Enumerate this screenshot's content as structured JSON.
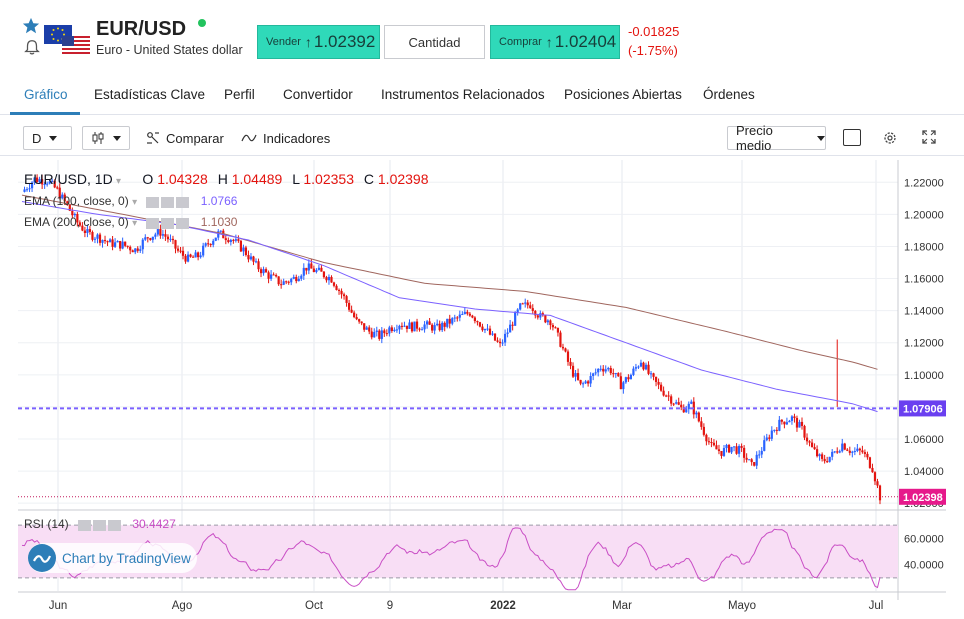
{
  "header": {
    "pair": "EUR/USD",
    "description": "Euro - United States dollar",
    "sell_label": "Vender",
    "sell_price": "1.02392",
    "quantity_label": "Cantidad",
    "buy_label": "Comprar",
    "buy_price": "1.02404",
    "change_abs": "-0.01825",
    "change_pct": "(-1.75%)"
  },
  "tabs": [
    {
      "label": "Gráfico",
      "active": true
    },
    {
      "label": "Estadísticas Clave"
    },
    {
      "label": "Perfil"
    },
    {
      "label": "Convertidor"
    },
    {
      "label": "Instrumentos Relacionados"
    },
    {
      "label": "Posiciones Abiertas"
    },
    {
      "label": "Órdenes"
    }
  ],
  "toolbar": {
    "interval": "D",
    "compare": "Comparar",
    "indicators": "Indicadores",
    "price_mode": "Precio medio"
  },
  "legend": {
    "symbol": "EUR/USD, 1D",
    "o_key": "O",
    "o_val": "1.04328",
    "h_key": "H",
    "h_val": "1.04489",
    "l_key": "L",
    "l_val": "1.02353",
    "c_key": "C",
    "c_val": "1.02398",
    "ema100_label": "EMA (100, close, 0)",
    "ema100_val": "1.0766",
    "ema200_label": "EMA (200, close, 0)",
    "ema200_val": "1.1030",
    "rsi_label": "RSI (14)",
    "rsi_val": "30.4427"
  },
  "branding": "Chart by TradingView",
  "colors": {
    "up": "#2962ff",
    "down": "#e3140f",
    "ema100": "#7b61ff",
    "ema200": "#a0665e",
    "rsi": "#c94ec5",
    "rsi_band": "#f8def5",
    "accent": "#2d7eb8",
    "trade_button": "#2fd9b9"
  },
  "chart_data": {
    "type": "candlestick",
    "ylim": [
      1.017,
      1.232
    ],
    "y_ticks": [
      "1.22000",
      "1.20000",
      "1.18000",
      "1.16000",
      "1.14000",
      "1.12000",
      "1.10000",
      "1.08000",
      "1.06000",
      "1.04000",
      "1.02000"
    ],
    "x_ticks": [
      "Jun",
      "Ago",
      "Oct",
      "9",
      "2022",
      "Mar",
      "Mayo",
      "Jul"
    ],
    "price_label_last": "1.02398",
    "price_label_level": "1.07906",
    "level_line": 1.07906,
    "last_price": 1.02398,
    "close_path": [
      [
        0,
        1.214
      ],
      [
        5,
        1.222
      ],
      [
        10,
        1.221
      ],
      [
        14,
        1.215
      ],
      [
        18,
        1.205
      ],
      [
        22,
        1.195
      ],
      [
        26,
        1.188
      ],
      [
        30,
        1.186
      ],
      [
        35,
        1.182
      ],
      [
        40,
        1.181
      ],
      [
        45,
        1.178
      ],
      [
        50,
        1.186
      ],
      [
        55,
        1.189
      ],
      [
        58,
        1.185
      ],
      [
        62,
        1.177
      ],
      [
        66,
        1.172
      ],
      [
        70,
        1.174
      ],
      [
        74,
        1.182
      ],
      [
        78,
        1.188
      ],
      [
        83,
        1.185
      ],
      [
        88,
        1.178
      ],
      [
        93,
        1.168
      ],
      [
        98,
        1.162
      ],
      [
        103,
        1.157
      ],
      [
        108,
        1.16
      ],
      [
        113,
        1.167
      ],
      [
        118,
        1.164
      ],
      [
        123,
        1.16
      ],
      [
        128,
        1.148
      ],
      [
        133,
        1.133
      ],
      [
        138,
        1.127
      ],
      [
        142,
        1.124
      ],
      [
        146,
        1.129
      ],
      [
        150,
        1.132
      ],
      [
        155,
        1.13
      ],
      [
        160,
        1.131
      ],
      [
        165,
        1.129
      ],
      [
        170,
        1.133
      ],
      [
        174,
        1.136
      ],
      [
        178,
        1.139
      ],
      [
        182,
        1.132
      ],
      [
        186,
        1.125
      ],
      [
        190,
        1.118
      ],
      [
        194,
        1.13
      ],
      [
        198,
        1.142
      ],
      [
        202,
        1.144
      ],
      [
        206,
        1.136
      ],
      [
        210,
        1.134
      ],
      [
        214,
        1.12
      ],
      [
        218,
        1.104
      ],
      [
        222,
        1.093
      ],
      [
        226,
        1.098
      ],
      [
        230,
        1.105
      ],
      [
        234,
        1.103
      ],
      [
        238,
        1.094
      ],
      [
        242,
        1.1
      ],
      [
        246,
        1.109
      ],
      [
        250,
        1.098
      ],
      [
        254,
        1.091
      ],
      [
        258,
        1.085
      ],
      [
        262,
        1.079
      ],
      [
        266,
        1.081
      ],
      [
        270,
        1.068
      ],
      [
        274,
        1.055
      ],
      [
        278,
        1.052
      ],
      [
        282,
        1.055
      ],
      [
        286,
        1.052
      ],
      [
        290,
        1.043
      ],
      [
        294,
        1.054
      ],
      [
        298,
        1.065
      ],
      [
        302,
        1.071
      ],
      [
        306,
        1.073
      ],
      [
        310,
        1.066
      ],
      [
        314,
        1.054
      ],
      [
        318,
        1.046
      ],
      [
        322,
        1.05
      ],
      [
        326,
        1.057
      ],
      [
        330,
        1.052
      ],
      [
        334,
        1.052
      ],
      [
        338,
        1.042
      ],
      [
        341,
        1.024
      ]
    ],
    "ema100": [
      [
        0,
        1.208
      ],
      [
        30,
        1.2
      ],
      [
        60,
        1.194
      ],
      [
        90,
        1.184
      ],
      [
        120,
        1.168
      ],
      [
        150,
        1.148
      ],
      [
        180,
        1.141
      ],
      [
        210,
        1.137
      ],
      [
        240,
        1.12
      ],
      [
        270,
        1.103
      ],
      [
        300,
        1.091
      ],
      [
        330,
        1.082
      ],
      [
        341,
        1.0766
      ]
    ],
    "ema200": [
      [
        0,
        1.212
      ],
      [
        40,
        1.2
      ],
      [
        80,
        1.188
      ],
      [
        120,
        1.17
      ],
      [
        160,
        1.157
      ],
      [
        200,
        1.152
      ],
      [
        240,
        1.142
      ],
      [
        280,
        1.127
      ],
      [
        310,
        1.115
      ],
      [
        330,
        1.108
      ],
      [
        341,
        1.103
      ]
    ],
    "rsi": {
      "ylim": [
        20,
        80
      ],
      "y_ticks": [
        "60.0000",
        "40.0000"
      ],
      "bands": [
        70,
        30
      ],
      "last": 30.4427
    }
  }
}
